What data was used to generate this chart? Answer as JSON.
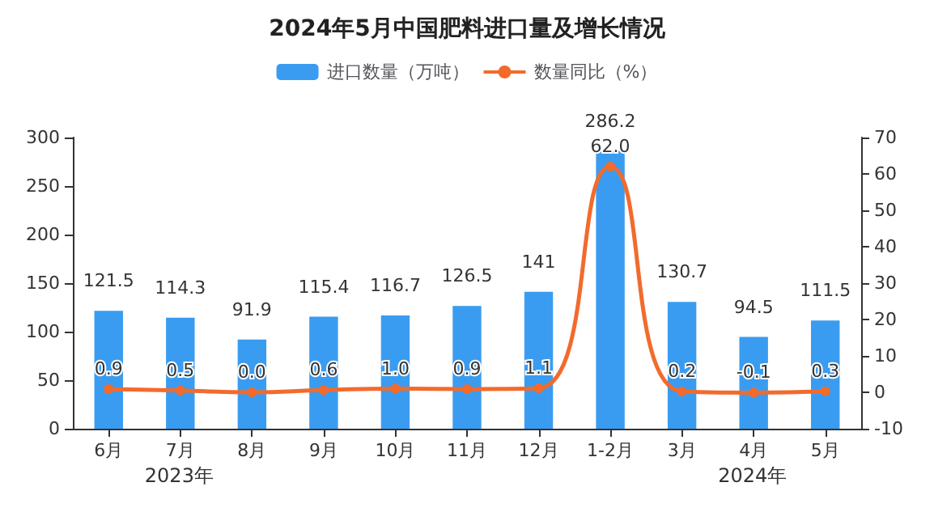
{
  "chart_data": {
    "type": "bar",
    "title": "2024年5月中国肥料进口量及增长情况",
    "categories": [
      "6月",
      "7月",
      "8月",
      "9月",
      "10月",
      "11月",
      "12月",
      "1-2月",
      "3月",
      "4月",
      "5月"
    ],
    "series": [
      {
        "name": "进口数量（万吨）",
        "color": "#3a9cf0",
        "values": [
          121.5,
          114.3,
          91.9,
          115.4,
          116.7,
          126.5,
          141,
          286.2,
          130.7,
          94.5,
          111.5
        ],
        "value_labels": [
          "121.5",
          "114.3",
          "91.9",
          "115.4",
          "116.7",
          "126.5",
          "141",
          "286.2",
          "130.7",
          "94.5",
          "111.5"
        ]
      },
      {
        "name": "数量同比（%）",
        "type": "line",
        "axis": "y2",
        "color": "#f26b2c",
        "values": [
          0.9,
          0.5,
          0.0,
          0.6,
          1.0,
          0.9,
          1.1,
          62.0,
          0.2,
          -0.1,
          0.3
        ],
        "value_labels": [
          "0.9",
          "0.5",
          "0.0",
          "0.6",
          "1.0",
          "0.9",
          "1.1",
          "62.0",
          "0.2",
          "-0.1",
          "0.3"
        ]
      }
    ],
    "ylim": [
      0,
      300
    ],
    "yticks": [
      0,
      50,
      100,
      150,
      200,
      250,
      300
    ],
    "y2lim": [
      -10,
      70
    ],
    "y2ticks": [
      -10,
      0,
      10,
      20,
      30,
      40,
      50,
      60,
      70
    ],
    "annotations": [
      "2023年",
      "2024年"
    ],
    "legend": "top",
    "grid": false,
    "marker": "circle"
  }
}
